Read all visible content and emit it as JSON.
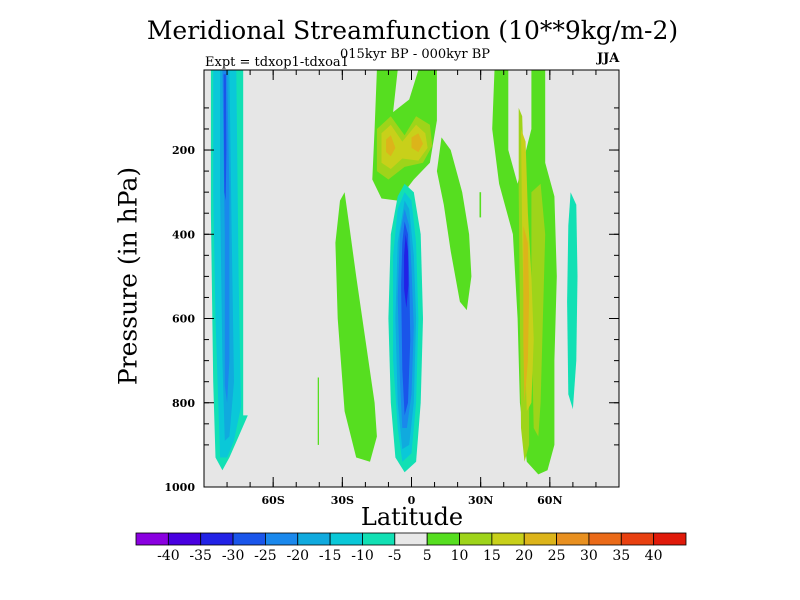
{
  "chart_data": {
    "type": "heatmap",
    "title": "Meridional Streamfunction (10**9kg/m-2)",
    "subtitle": "015kyr BP - 000kyr BP",
    "experiment_label": "Expt = tdxop1-tdxoa1",
    "season": "JJA",
    "xlabel": "Latitude",
    "ylabel": "Pressure (in hPa)",
    "x_ticks": [
      {
        "value": -60,
        "label": "60S"
      },
      {
        "value": -30,
        "label": "30S"
      },
      {
        "value": 0,
        "label": "0"
      },
      {
        "value": 30,
        "label": "30N"
      },
      {
        "value": 60,
        "label": "60N"
      }
    ],
    "y_ticks": [
      {
        "value": 200,
        "label": "200"
      },
      {
        "value": 400,
        "label": "400"
      },
      {
        "value": 600,
        "label": "600"
      },
      {
        "value": 800,
        "label": "800"
      },
      {
        "value": 1000,
        "label": "1000"
      }
    ],
    "xlim": [
      -90,
      90
    ],
    "ylim": [
      1000,
      10
    ],
    "colorbar": {
      "levels": [
        -40,
        -35,
        -30,
        -25,
        -20,
        -15,
        -10,
        -5,
        5,
        10,
        15,
        20,
        25,
        30,
        35,
        40
      ],
      "labels": [
        "-40",
        "-35",
        "-30",
        "-25",
        "-20",
        "-15",
        "-10",
        "-5",
        "5",
        "10",
        "15",
        "20",
        "25",
        "30",
        "35",
        "40"
      ],
      "colors": [
        "#8a00e0",
        "#4800e0",
        "#2222e6",
        "#1a55ea",
        "#1a88ec",
        "#10aade",
        "#0ac8d8",
        "#12e0b4",
        "#e8e8e8",
        "#56de20",
        "#9ed41a",
        "#c8d01a",
        "#dcb41a",
        "#e89020",
        "#ea6a18",
        "#e84010",
        "#e01a0a"
      ]
    },
    "background_color": "#e6e6e6",
    "features": [
      {
        "name": "southern-polar-negative-cell",
        "lat_range": [
          -88,
          -70
        ],
        "p_range": [
          10,
          960
        ],
        "min_value": -35
      },
      {
        "name": "equatorial-negative-cell",
        "lat_range": [
          -8,
          5
        ],
        "p_range": [
          280,
          965
        ],
        "min_value": -30
      },
      {
        "name": "equatorial-upper-positive-core",
        "lat_range": [
          -17,
          10
        ],
        "p_range": [
          115,
          290
        ],
        "max_value": 25
      },
      {
        "name": "northern-midlatitude-positive-cell",
        "lat_range": [
          36,
          62
        ],
        "p_range": [
          10,
          970
        ],
        "max_value": 25
      },
      {
        "name": "subtropical-south-positive-band",
        "lat_range": [
          -33,
          -16
        ],
        "p_range": [
          300,
          940
        ],
        "max_value": 10
      },
      {
        "name": "northern-polar-negative-band",
        "lat_range": [
          67,
          72
        ],
        "p_range": [
          300,
          815
        ],
        "min_value": -10
      }
    ]
  }
}
